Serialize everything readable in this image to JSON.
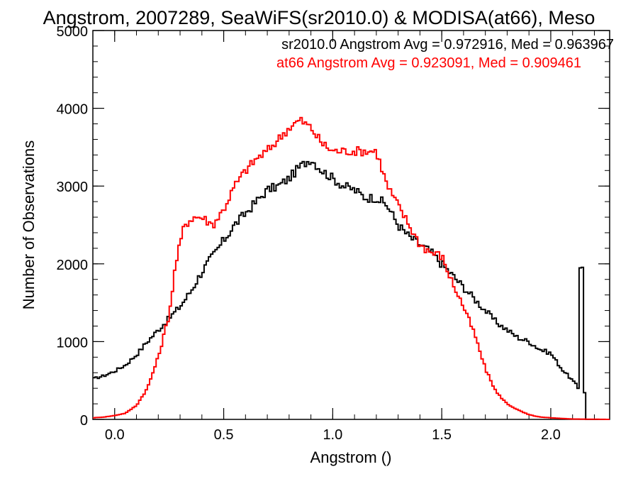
{
  "chart_data": {
    "type": "line",
    "title": "Angstrom, 2007289, SeaWiFS(sr2010.0) & MODISA(at66), Meso",
    "xlabel": "Angstrom ()",
    "ylabel": "Number of Observations",
    "xlim": [
      -0.1,
      2.27
    ],
    "ylim": [
      0,
      5000
    ],
    "x_ticks": [
      0.0,
      0.5,
      1.0,
      1.5,
      2.0
    ],
    "x_tick_labels": [
      "0.0",
      "0.5",
      "1.0",
      "1.5",
      "2.0"
    ],
    "y_ticks": [
      0,
      1000,
      2000,
      3000,
      4000,
      5000
    ],
    "y_tick_labels": [
      "0",
      "1000",
      "2000",
      "3000",
      "4000",
      "5000"
    ],
    "grid": false,
    "step": true,
    "annotations": [
      {
        "text": "sr2010.0 Angstrom Avg = 0.972916, Med = 0.963967",
        "color": "#000000"
      },
      {
        "text": "at66 Angstrom Avg = 0.923091, Med = 0.909461",
        "color": "#ff0000"
      }
    ],
    "series": [
      {
        "color": "#000000",
        "points": [
          [
            -0.1,
            520
          ],
          [
            -0.05,
            560
          ],
          [
            0.0,
            620
          ],
          [
            0.05,
            700
          ],
          [
            0.1,
            830
          ],
          [
            0.15,
            1000
          ],
          [
            0.2,
            1150
          ],
          [
            0.25,
            1300
          ],
          [
            0.3,
            1450
          ],
          [
            0.35,
            1650
          ],
          [
            0.4,
            1900
          ],
          [
            0.45,
            2100
          ],
          [
            0.5,
            2300
          ],
          [
            0.55,
            2500
          ],
          [
            0.6,
            2650
          ],
          [
            0.65,
            2800
          ],
          [
            0.7,
            2950
          ],
          [
            0.75,
            3000
          ],
          [
            0.8,
            3100
          ],
          [
            0.85,
            3250
          ],
          [
            0.9,
            3350
          ],
          [
            0.95,
            3200
          ],
          [
            1.0,
            3100
          ],
          [
            1.05,
            3000
          ],
          [
            1.1,
            2950
          ],
          [
            1.15,
            2850
          ],
          [
            1.2,
            2850
          ],
          [
            1.25,
            2750
          ],
          [
            1.3,
            2500
          ],
          [
            1.35,
            2350
          ],
          [
            1.4,
            2250
          ],
          [
            1.45,
            2150
          ],
          [
            1.5,
            2000
          ],
          [
            1.55,
            1850
          ],
          [
            1.6,
            1700
          ],
          [
            1.65,
            1550
          ],
          [
            1.7,
            1400
          ],
          [
            1.75,
            1250
          ],
          [
            1.8,
            1150
          ],
          [
            1.85,
            1050
          ],
          [
            1.9,
            1000
          ],
          [
            1.95,
            900
          ],
          [
            2.0,
            850
          ],
          [
            2.05,
            650
          ],
          [
            2.1,
            500
          ],
          [
            2.13,
            400
          ],
          [
            2.14,
            1980
          ],
          [
            2.15,
            350
          ],
          [
            2.16,
            0
          ],
          [
            2.27,
            0
          ]
        ]
      },
      {
        "color": "#ff0000",
        "points": [
          [
            -0.1,
            20
          ],
          [
            -0.05,
            30
          ],
          [
            0.0,
            50
          ],
          [
            0.05,
            80
          ],
          [
            0.1,
            180
          ],
          [
            0.15,
            400
          ],
          [
            0.2,
            800
          ],
          [
            0.25,
            1350
          ],
          [
            0.28,
            2000
          ],
          [
            0.32,
            2500
          ],
          [
            0.36,
            2600
          ],
          [
            0.4,
            2600
          ],
          [
            0.45,
            2500
          ],
          [
            0.5,
            2700
          ],
          [
            0.55,
            3000
          ],
          [
            0.6,
            3200
          ],
          [
            0.65,
            3350
          ],
          [
            0.7,
            3450
          ],
          [
            0.75,
            3600
          ],
          [
            0.8,
            3750
          ],
          [
            0.85,
            3850
          ],
          [
            0.9,
            3750
          ],
          [
            0.95,
            3550
          ],
          [
            1.0,
            3450
          ],
          [
            1.05,
            3450
          ],
          [
            1.1,
            3450
          ],
          [
            1.15,
            3450
          ],
          [
            1.2,
            3450
          ],
          [
            1.25,
            3000
          ],
          [
            1.3,
            2750
          ],
          [
            1.35,
            2500
          ],
          [
            1.4,
            2250
          ],
          [
            1.45,
            2150
          ],
          [
            1.5,
            2100
          ],
          [
            1.55,
            1750
          ],
          [
            1.6,
            1450
          ],
          [
            1.65,
            1100
          ],
          [
            1.7,
            650
          ],
          [
            1.75,
            350
          ],
          [
            1.8,
            200
          ],
          [
            1.85,
            120
          ],
          [
            1.9,
            60
          ],
          [
            1.95,
            30
          ],
          [
            2.0,
            20
          ],
          [
            2.1,
            5
          ],
          [
            2.27,
            0
          ]
        ]
      }
    ]
  }
}
